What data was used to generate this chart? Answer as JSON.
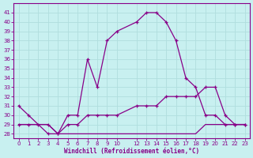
{
  "xlabel": "Windchill (Refroidissement éolien,°C)",
  "bg_color": "#c8f0f0",
  "grid_color": "#b0dede",
  "line_color": "#880088",
  "xlim": [
    -0.5,
    23.5
  ],
  "ylim": [
    27.5,
    42.0
  ],
  "xticks": [
    0,
    1,
    2,
    3,
    4,
    5,
    6,
    7,
    8,
    9,
    10,
    12,
    13,
    14,
    15,
    16,
    17,
    18,
    19,
    20,
    21,
    22,
    23
  ],
  "yticks": [
    28,
    29,
    30,
    31,
    32,
    33,
    34,
    35,
    36,
    37,
    38,
    39,
    40,
    41
  ],
  "series1_x": [
    0,
    1,
    2,
    3,
    4,
    5,
    6,
    7,
    8,
    9,
    10,
    12,
    13,
    14,
    15,
    16,
    17,
    18,
    19,
    20,
    21,
    22,
    23
  ],
  "series1_y": [
    31,
    30,
    29,
    28,
    28,
    30,
    30,
    36,
    33,
    38,
    39,
    40,
    41,
    41,
    40,
    38,
    34,
    33,
    30,
    30,
    29,
    29,
    29
  ],
  "series2_x": [
    0,
    1,
    3,
    4,
    5,
    6,
    7,
    8,
    9,
    10,
    12,
    13,
    14,
    15,
    16,
    17,
    18,
    19,
    20,
    21,
    22,
    23
  ],
  "series2_y": [
    29,
    29,
    29,
    28,
    29,
    29,
    30,
    30,
    30,
    30,
    31,
    31,
    31,
    32,
    32,
    32,
    32,
    33,
    33,
    30,
    29,
    29
  ],
  "series3_x": [
    0,
    1,
    3,
    4,
    5,
    6,
    7,
    8,
    9,
    10,
    12,
    13,
    14,
    15,
    16,
    17,
    18,
    19,
    20,
    21,
    22,
    23
  ],
  "series3_y": [
    29,
    29,
    29,
    28,
    28,
    28,
    28,
    28,
    28,
    28,
    28,
    28,
    28,
    28,
    28,
    28,
    28,
    29,
    29,
    29,
    29,
    29
  ]
}
